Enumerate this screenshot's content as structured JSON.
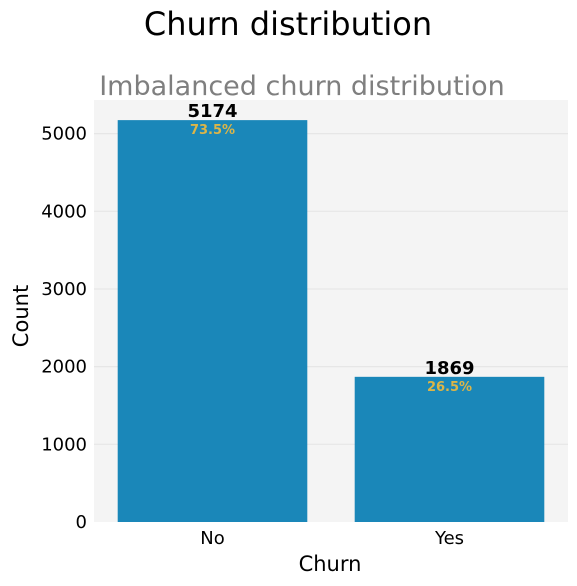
{
  "figure": {
    "title": "Churn distribution"
  },
  "chart_data": {
    "type": "bar",
    "title": "Imbalanced churn distribution",
    "xlabel": "Churn",
    "ylabel": "Count",
    "categories": [
      "No",
      "Yes"
    ],
    "values": [
      5174,
      1869
    ],
    "value_labels": [
      "5174",
      "1869"
    ],
    "percent_labels": [
      "73.5%",
      "26.5%"
    ],
    "yticks": [
      0,
      1000,
      2000,
      3000,
      4000,
      5000
    ],
    "ylim": [
      0,
      5433
    ],
    "grid": true,
    "colors": {
      "bar": "#1a87b9",
      "plot_background": "#f4f4f4",
      "grid": "#e6e6e6",
      "title": "#000000",
      "subtitle": "#7f7f7f",
      "value_label": "#000000",
      "percent_label": "#dcb548"
    }
  }
}
